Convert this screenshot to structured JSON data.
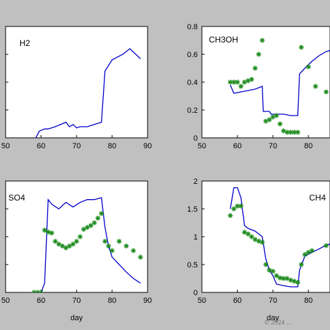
{
  "watermark": "© 2024 ...",
  "chart_data": [
    {
      "type": "line",
      "title": "H2",
      "xlabel": "",
      "ylabel": "",
      "xlim": [
        50,
        90
      ],
      "ylim": [
        0,
        1
      ],
      "xticks": [
        "50",
        "60",
        "70",
        "80",
        "90"
      ],
      "yticks": [],
      "grid": false,
      "series": [
        {
          "style": "line",
          "color": "#0000cc",
          "x": [
            58.5,
            59.5,
            61,
            62,
            64,
            67,
            68,
            69,
            70,
            71,
            73,
            75,
            77,
            78,
            80,
            83,
            85,
            88
          ],
          "y": [
            0,
            0.06,
            0.08,
            0.08,
            0.1,
            0.14,
            0.1,
            0.12,
            0.09,
            0.1,
            0.1,
            0.12,
            0.14,
            0.6,
            0.7,
            0.75,
            0.8,
            0.71
          ]
        }
      ]
    },
    {
      "type": "line",
      "title": "CH3OH",
      "xlabel": "",
      "ylabel": "",
      "xlim": [
        50,
        90
      ],
      "ylim": [
        0,
        0.8
      ],
      "xticks": [
        "50",
        "60",
        "70",
        "80"
      ],
      "yticks": [
        "0",
        "0.2",
        "0.4",
        "0.6",
        "0.8"
      ],
      "grid": false,
      "series": [
        {
          "style": "line",
          "color": "#0000cc",
          "x": [
            58,
            59,
            61,
            63,
            65,
            67,
            67.3,
            69,
            69.5,
            71,
            73,
            75,
            77,
            77.5,
            79,
            81,
            83,
            85,
            88,
            90
          ],
          "y": [
            0.38,
            0.32,
            0.33,
            0.34,
            0.35,
            0.37,
            0.19,
            0.19,
            0.17,
            0.17,
            0.17,
            0.16,
            0.16,
            0.46,
            0.5,
            0.55,
            0.59,
            0.62,
            0.64,
            0.65
          ]
        },
        {
          "style": "markers",
          "marker": "star",
          "color": "#1e8c1e",
          "x": [
            58,
            59,
            60,
            61,
            62,
            63,
            64,
            65,
            66,
            67,
            68,
            69,
            70,
            71,
            72,
            73,
            74,
            75,
            76,
            77,
            78,
            80,
            82,
            85,
            88
          ],
          "y": [
            0.4,
            0.4,
            0.4,
            0.37,
            0.4,
            0.41,
            0.42,
            0.5,
            0.6,
            0.7,
            0.12,
            0.13,
            0.15,
            0.16,
            0.1,
            0.05,
            0.04,
            0.04,
            0.04,
            0.04,
            0.65,
            0.51,
            0.37,
            0.33,
            0.37
          ]
        }
      ]
    },
    {
      "type": "line",
      "title": "SO4",
      "xlabel": "day",
      "ylabel": "",
      "xlim": [
        50,
        90
      ],
      "ylim": [
        0,
        1.2
      ],
      "xticks": [
        "50",
        "60",
        "70",
        "80",
        "90"
      ],
      "yticks": [],
      "grid": false,
      "series": [
        {
          "style": "line",
          "color": "#0000cc",
          "x": [
            58,
            59,
            60,
            61,
            62,
            63,
            65,
            67,
            69,
            71,
            73,
            75,
            77,
            78,
            79,
            80,
            82,
            84,
            86,
            88
          ],
          "y": [
            0,
            0,
            0,
            0.1,
            1.0,
            0.95,
            0.9,
            0.97,
            0.92,
            0.97,
            1.0,
            1.0,
            1.02,
            0.7,
            0.5,
            0.38,
            0.3,
            0.22,
            0.15,
            0.1
          ]
        },
        {
          "style": "markers",
          "marker": "star",
          "color": "#1e8c1e",
          "x": [
            58,
            59,
            60,
            61,
            62,
            63,
            64,
            65,
            66,
            67,
            68,
            69,
            70,
            71,
            72,
            73,
            74,
            75,
            76,
            77,
            78,
            79,
            80,
            82,
            84,
            86,
            88
          ],
          "y": [
            0,
            0,
            0,
            0.67,
            0.65,
            0.64,
            0.55,
            0.52,
            0.5,
            0.48,
            0.5,
            0.52,
            0.55,
            0.6,
            0.68,
            0.7,
            0.72,
            0.75,
            0.8,
            0.85,
            0.55,
            0.5,
            0.45,
            0.55,
            0.5,
            0.45,
            0.38
          ]
        }
      ]
    },
    {
      "type": "line",
      "title": "CH4",
      "xlabel": "day",
      "ylabel": "",
      "xlim": [
        50,
        90
      ],
      "ylim": [
        0,
        2
      ],
      "xticks": [
        "50",
        "60",
        "70",
        "80",
        "90"
      ],
      "yticks": [
        "0",
        "0.5",
        "1",
        "1.5",
        "2"
      ],
      "grid": false,
      "series": [
        {
          "style": "line",
          "color": "#0000cc",
          "x": [
            58,
            59,
            60,
            61,
            62,
            63,
            65,
            67,
            68,
            69,
            70,
            71,
            73,
            75,
            77,
            77.5,
            79,
            81,
            83,
            85,
            88,
            90
          ],
          "y": [
            1.5,
            1.88,
            1.88,
            1.7,
            1.2,
            1.15,
            1.1,
            1.0,
            0.6,
            0.4,
            0.3,
            0.15,
            0.12,
            0.1,
            0.1,
            0.4,
            0.65,
            0.72,
            0.78,
            0.85,
            0.9,
            0.95
          ]
        },
        {
          "style": "markers",
          "marker": "star",
          "color": "#1e8c1e",
          "x": [
            58,
            59,
            60,
            61,
            62,
            63,
            64,
            65,
            66,
            67,
            68,
            69,
            70,
            71,
            72,
            73,
            74,
            75,
            76,
            77,
            78,
            79,
            80,
            81,
            85,
            88
          ],
          "y": [
            1.38,
            1.5,
            1.55,
            1.55,
            1.08,
            1.05,
            1.0,
            0.95,
            0.92,
            0.9,
            0.5,
            0.4,
            0.38,
            0.3,
            0.26,
            0.25,
            0.25,
            0.22,
            0.2,
            0.18,
            0.5,
            0.68,
            0.72,
            0.75,
            0.84,
            0.9
          ]
        }
      ]
    }
  ]
}
